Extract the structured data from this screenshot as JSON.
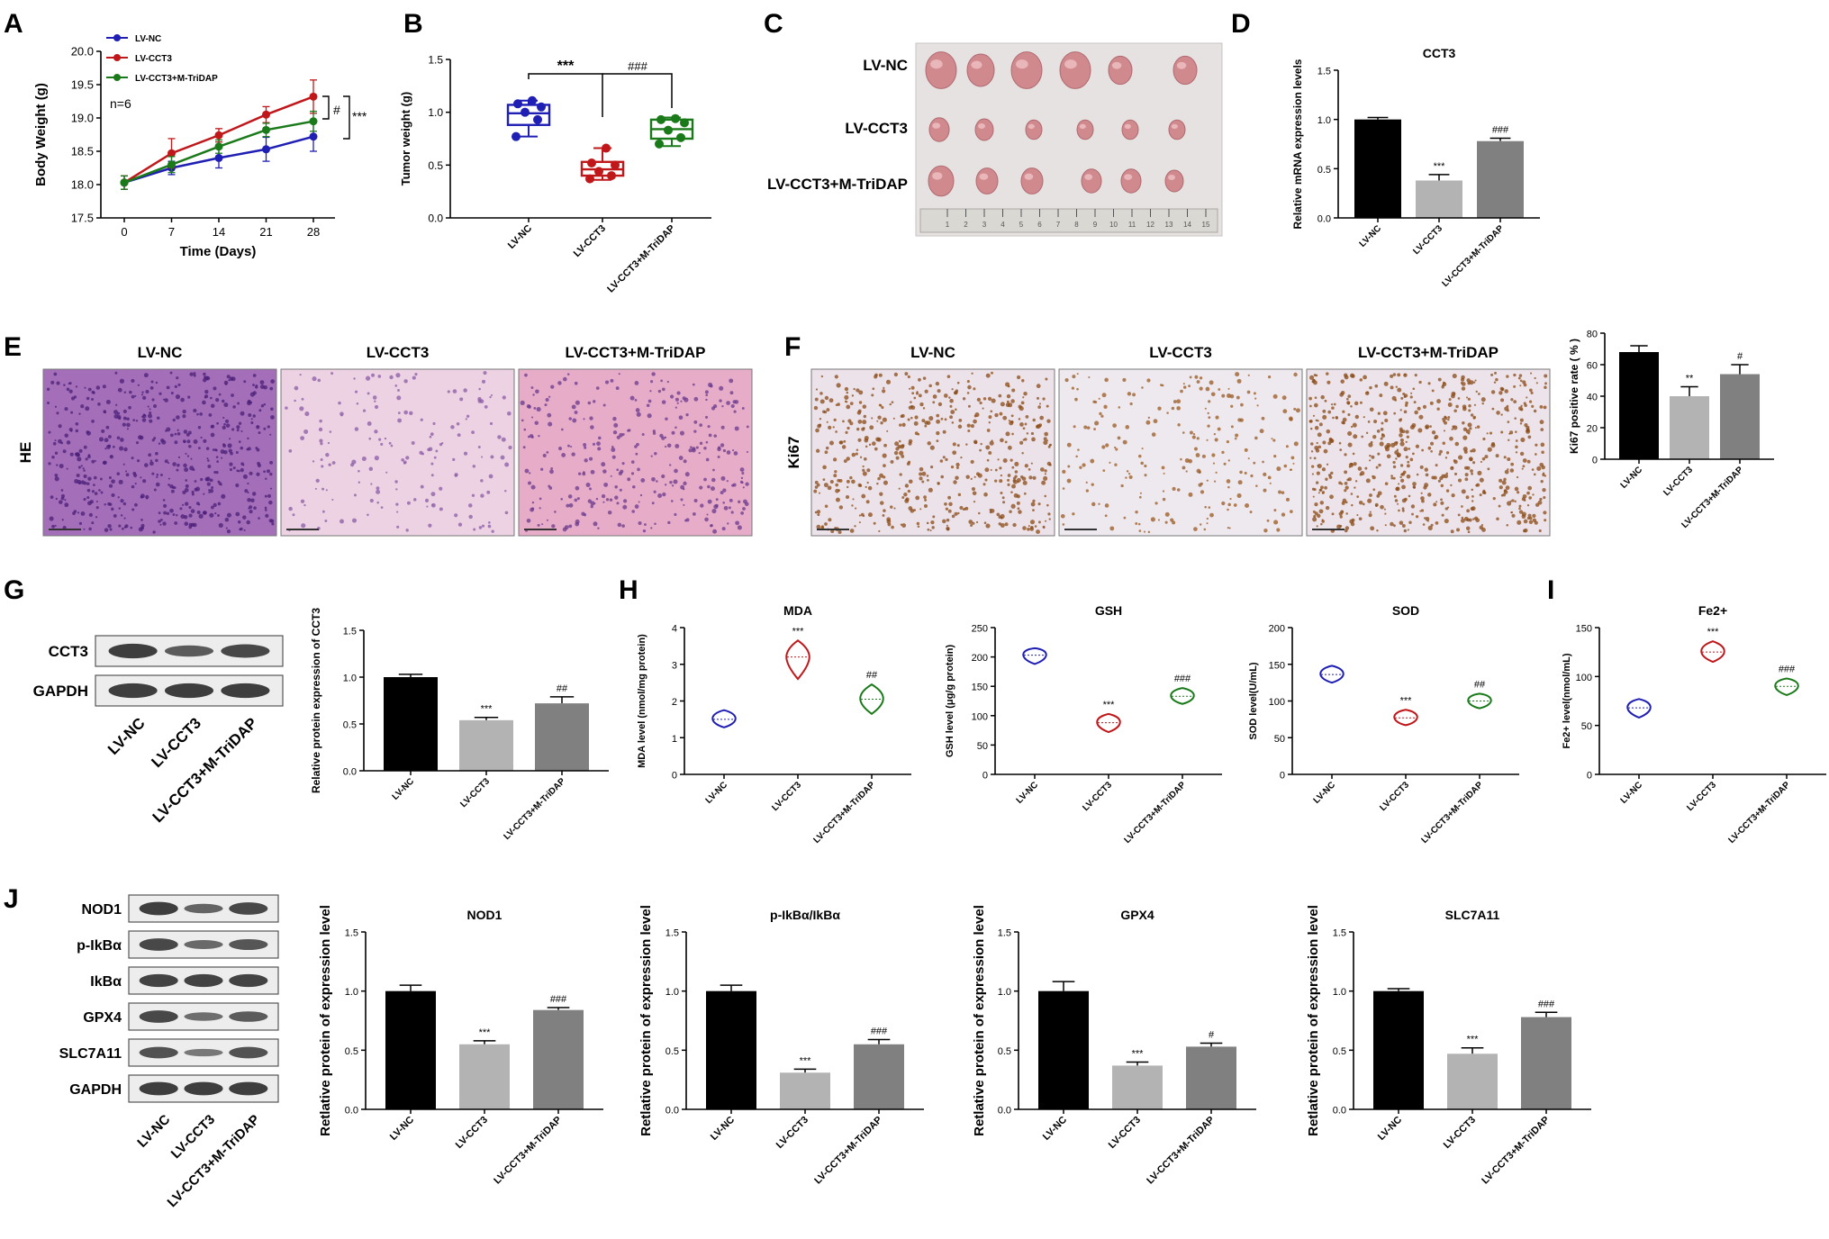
{
  "colors": {
    "black": "#000000",
    "light_gray": "#b3b3b3",
    "mid_gray": "#808080",
    "blue": "#1f1fb4",
    "red": "#c0171a",
    "green": "#1a7a1a"
  },
  "groups": [
    "LV-NC",
    "LV-CCT3",
    "LV-CCT3+M-TriDAP"
  ],
  "panel_letters": [
    "A",
    "B",
    "C",
    "D",
    "E",
    "F",
    "G",
    "H",
    "I",
    "J"
  ],
  "chart_data": [
    {
      "panel": "A",
      "type": "line",
      "xlabel": "Time (Days)",
      "ylabel": "Body Weight (g)",
      "x": [
        0,
        7,
        14,
        21,
        28
      ],
      "xticks": [
        "0",
        "7",
        "14",
        "21",
        "28"
      ],
      "ylim": [
        17.5,
        20.0
      ],
      "yticks": [
        "17.5",
        "18.0",
        "18.5",
        "19.0",
        "19.5",
        "20.0"
      ],
      "annotation": "n=6",
      "legend": "top-left",
      "significance": [
        "#",
        "***"
      ],
      "series": [
        {
          "name": "LV-NC",
          "color": "#1f1fb4",
          "values": [
            18.03,
            18.25,
            18.4,
            18.53,
            18.72
          ],
          "errors": [
            0.1,
            0.1,
            0.15,
            0.18,
            0.22
          ]
        },
        {
          "name": "LV-CCT3",
          "color": "#c0171a",
          "values": [
            18.03,
            18.47,
            18.74,
            19.05,
            19.32
          ],
          "errors": [
            0.1,
            0.22,
            0.1,
            0.12,
            0.25
          ]
        },
        {
          "name": "LV-CCT3+M-TriDAP",
          "color": "#1a7a1a",
          "values": [
            18.03,
            18.3,
            18.57,
            18.82,
            18.95
          ],
          "errors": [
            0.1,
            0.12,
            0.1,
            0.1,
            0.15
          ]
        }
      ]
    },
    {
      "panel": "B",
      "type": "box",
      "ylabel": "Tumor weight (g)",
      "categories": [
        "LV-NC",
        "LV-CCT3",
        "LV-CCT3+M-TriDAP"
      ],
      "ylim": [
        0.0,
        1.5
      ],
      "yticks": [
        "0.0",
        "0.5",
        "1.0",
        "1.5"
      ],
      "boxes": [
        {
          "color": "#1f1fb4",
          "min": 0.77,
          "q1": 0.88,
          "median": 0.99,
          "q3": 1.07,
          "max": 1.11,
          "points": [
            0.77,
            0.93,
            1.0,
            1.05,
            1.08,
            1.11
          ]
        },
        {
          "color": "#c0171a",
          "min": 0.36,
          "q1": 0.4,
          "median": 0.46,
          "q3": 0.53,
          "max": 0.66,
          "points": [
            0.37,
            0.4,
            0.44,
            0.5,
            0.52,
            0.66
          ]
        },
        {
          "color": "#1a7a1a",
          "min": 0.68,
          "q1": 0.75,
          "median": 0.84,
          "q3": 0.93,
          "max": 0.95,
          "points": [
            0.7,
            0.76,
            0.83,
            0.9,
            0.93,
            0.94
          ]
        }
      ],
      "significance": [
        "***",
        "###"
      ]
    },
    {
      "panel": "D",
      "type": "bar",
      "title": "CCT3",
      "ylabel": "Relative mRNA expression levels",
      "categories": [
        "LV-NC",
        "LV-CCT3",
        "LV-CCT3+M-TriDAP"
      ],
      "values": [
        1.0,
        0.38,
        0.78
      ],
      "errors": [
        0.02,
        0.06,
        0.03
      ],
      "ylim": [
        0.0,
        1.5
      ],
      "yticks": [
        "0.0",
        "0.5",
        "1.0",
        "1.5"
      ],
      "sig": [
        "",
        "***",
        "###"
      ]
    },
    {
      "panel": "F",
      "type": "bar",
      "ylabel": "Ki67 positive rate ( % )",
      "categories": [
        "LV-NC",
        "LV-CCT3",
        "LV-CCT3+M-TriDAP"
      ],
      "values": [
        68,
        40,
        54
      ],
      "errors": [
        4,
        6,
        6
      ],
      "ylim": [
        0,
        80
      ],
      "yticks": [
        "0",
        "20",
        "40",
        "60",
        "80"
      ],
      "sig": [
        "",
        "**",
        "#"
      ]
    },
    {
      "panel": "G",
      "type": "bar",
      "ylabel": "Relative protein expression of CCT3",
      "categories": [
        "LV-NC",
        "LV-CCT3",
        "LV-CCT3+M-TriDAP"
      ],
      "values": [
        1.0,
        0.54,
        0.72
      ],
      "errors": [
        0.03,
        0.03,
        0.07
      ],
      "ylim": [
        0.0,
        1.5
      ],
      "yticks": [
        "0.0",
        "0.5",
        "1.0",
        "1.5"
      ],
      "sig": [
        "",
        "***",
        "##"
      ]
    },
    {
      "panel": "H",
      "type": "violin",
      "title": "MDA",
      "ylabel": "MDA level (nmol/mg protein)",
      "categories": [
        "LV-NC",
        "LV-CCT3",
        "LV-CCT3+M-TriDAP"
      ],
      "values": [
        1.5,
        3.2,
        2.05
      ],
      "ranges": [
        [
          1.28,
          1.75
        ],
        [
          2.6,
          3.65
        ],
        [
          1.65,
          2.45
        ]
      ],
      "ylim": [
        0,
        4
      ],
      "yticks": [
        "0",
        "1",
        "2",
        "3",
        "4"
      ],
      "sig": [
        "",
        "***",
        "##"
      ]
    },
    {
      "panel": "H",
      "type": "violin",
      "title": "GSH",
      "ylabel": "GSH level (μg/g protein)",
      "categories": [
        "LV-NC",
        "LV-CCT3",
        "LV-CCT3+M-TriDAP"
      ],
      "values": [
        203,
        88,
        133
      ],
      "ranges": [
        [
          188,
          215
        ],
        [
          72,
          103
        ],
        [
          120,
          147
        ]
      ],
      "ylim": [
        0,
        250
      ],
      "yticks": [
        "0",
        "50",
        "100",
        "150",
        "200",
        "250"
      ],
      "sig": [
        "",
        "***",
        "###"
      ]
    },
    {
      "panel": "H",
      "type": "violin",
      "title": "SOD",
      "ylabel": "SOD level(U/mL)",
      "categories": [
        "LV-NC",
        "LV-CCT3",
        "LV-CCT3+M-TriDAP"
      ],
      "values": [
        136,
        77,
        100
      ],
      "ranges": [
        [
          125,
          148
        ],
        [
          67,
          88
        ],
        [
          90,
          110
        ]
      ],
      "ylim": [
        0,
        200
      ],
      "yticks": [
        "0",
        "50",
        "100",
        "150",
        "200"
      ],
      "sig": [
        "",
        "***",
        "##"
      ]
    },
    {
      "panel": "I",
      "type": "violin",
      "title": "Fe2+",
      "ylabel": "Fe2+ level(nmol/mL)",
      "categories": [
        "LV-NC",
        "LV-CCT3",
        "LV-CCT3+M-TriDAP"
      ],
      "values": [
        68,
        125,
        90
      ],
      "ranges": [
        [
          58,
          77
        ],
        [
          115,
          136
        ],
        [
          81,
          98
        ]
      ],
      "ylim": [
        0,
        150
      ],
      "yticks": [
        "0",
        "50",
        "100",
        "150"
      ],
      "sig": [
        "",
        "***",
        "###"
      ]
    },
    {
      "panel": "J",
      "type": "bar",
      "title": "NOD1",
      "ylabel": "Retlative protein of expression level",
      "categories": [
        "LV-NC",
        "LV-CCT3",
        "LV-CCT3+M-TriDAP"
      ],
      "values": [
        1.0,
        0.55,
        0.84
      ],
      "errors": [
        0.05,
        0.03,
        0.02
      ],
      "ylim": [
        0.0,
        1.5
      ],
      "yticks": [
        "0.0",
        "0.5",
        "1.0",
        "1.5"
      ],
      "sig": [
        "",
        "***",
        "###"
      ]
    },
    {
      "panel": "J",
      "type": "bar",
      "title": "p-IkBα/IkBα",
      "ylabel": "Retlative protein of expression level",
      "categories": [
        "LV-NC",
        "LV-CCT3",
        "LV-CCT3+M-TriDAP"
      ],
      "values": [
        1.0,
        0.31,
        0.55
      ],
      "errors": [
        0.05,
        0.03,
        0.04
      ],
      "ylim": [
        0.0,
        1.5
      ],
      "yticks": [
        "0.0",
        "0.5",
        "1.0",
        "1.5"
      ],
      "sig": [
        "",
        "***",
        "###"
      ]
    },
    {
      "panel": "J",
      "type": "bar",
      "title": "GPX4",
      "ylabel": "Retlative protein of expression level",
      "categories": [
        "LV-NC",
        "LV-CCT3",
        "LV-CCT3+M-TriDAP"
      ],
      "values": [
        1.0,
        0.37,
        0.53
      ],
      "errors": [
        0.08,
        0.03,
        0.03
      ],
      "ylim": [
        0.0,
        1.5
      ],
      "yticks": [
        "0.0",
        "0.5",
        "1.0",
        "1.5"
      ],
      "sig": [
        "",
        "***",
        "#"
      ]
    },
    {
      "panel": "J",
      "type": "bar",
      "title": "SLC7A11",
      "ylabel": "Retlative protein of expression level",
      "categories": [
        "LV-NC",
        "LV-CCT3",
        "LV-CCT3+M-TriDAP"
      ],
      "values": [
        1.0,
        0.47,
        0.78
      ],
      "errors": [
        0.02,
        0.05,
        0.04
      ],
      "ylim": [
        0.0,
        1.5
      ],
      "yticks": [
        "0.0",
        "0.5",
        "1.0",
        "1.5"
      ],
      "sig": [
        "",
        "***",
        "###"
      ]
    }
  ],
  "photo_C": {
    "labels": [
      "LV-NC",
      "LV-CCT3",
      "LV-CCT3+M-TriDAP"
    ],
    "ruler_ticks": [
      "1",
      "2",
      "3",
      "4",
      "5",
      "6",
      "7",
      "8",
      "9",
      "10",
      "11",
      "12",
      "13",
      "14",
      "15"
    ]
  },
  "histology": {
    "E": {
      "row_label": "HE",
      "titles": [
        "LV-NC",
        "LV-CCT3",
        "LV-CCT3+M-TriDAP"
      ]
    },
    "F": {
      "row_label": "Ki67",
      "titles": [
        "LV-NC",
        "LV-CCT3",
        "LV-CCT3+M-TriDAP"
      ]
    }
  },
  "blot_G": {
    "proteins": [
      "CCT3",
      "GAPDH"
    ],
    "lanes": [
      "LV-NC",
      "LV-CCT3",
      "LV-CCT3+M-TriDAP"
    ]
  },
  "blot_J": {
    "proteins": [
      "NOD1",
      "p-IkBα",
      "IkBα",
      "GPX4",
      "SLC7A11",
      "GAPDH"
    ],
    "lanes": [
      "LV-NC",
      "LV-CCT3",
      "LV-CCT3+M-TriDAP"
    ]
  }
}
